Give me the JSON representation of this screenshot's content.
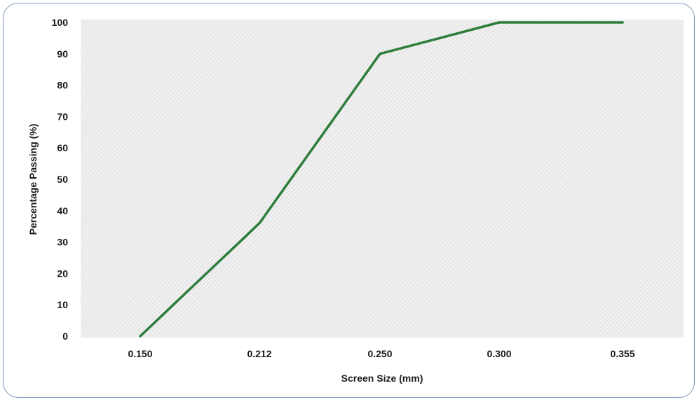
{
  "chart_data": {
    "type": "line",
    "title": "",
    "xlabel": "Screen Size (mm)",
    "ylabel": "Percentage Passing (%)",
    "categories": [
      "0.150",
      "0.212",
      "0.250",
      "0.300",
      "0.355"
    ],
    "series": [
      {
        "values": [
          0,
          36,
          90,
          100,
          100
        ],
        "color": "#2e7d3c"
      }
    ],
    "ylim": [
      0,
      100
    ],
    "yticks": [
      "0",
      "10",
      "20",
      "30",
      "40",
      "50",
      "60",
      "70",
      "80",
      "90",
      "100"
    ],
    "grid": false,
    "legend": "none",
    "plot_background": "hatched light gray"
  }
}
